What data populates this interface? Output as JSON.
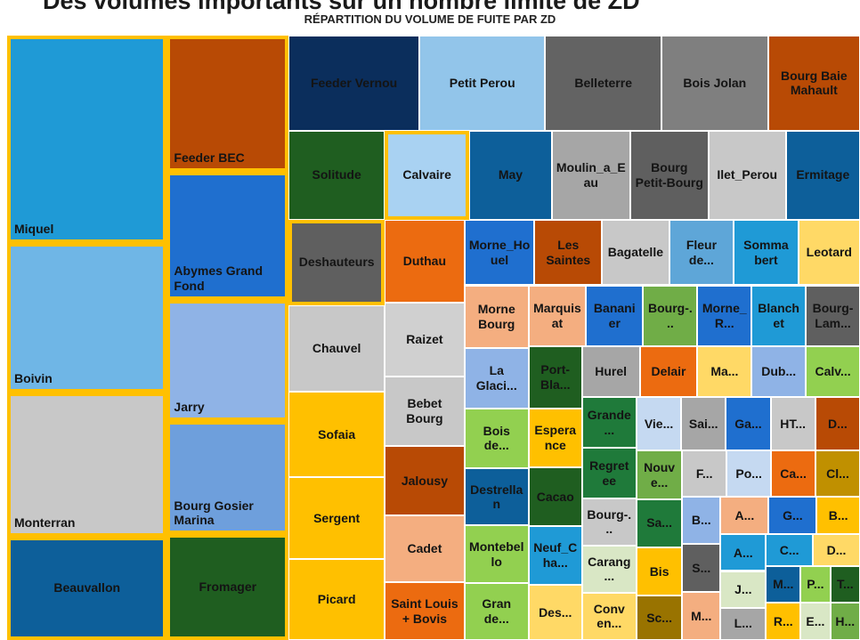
{
  "heading": "Des volumes importants sur un nombre limité de ZD",
  "chart_data": {
    "type": "treemap",
    "title": "RÉPARTITION DU VOLUME DE FUITE PAR ZD",
    "categories": [
      "Miquel",
      "Boivin",
      "Monterran",
      "Beauvallon",
      "Feeder BEC",
      "Abymes Grand Fond",
      "Jarry",
      "Bourg Gosier Marina",
      "Fromager",
      "Feeder Vernou",
      "Petit Perou",
      "Belleterre",
      "Bois Jolan",
      "Bourg Baie Mahault",
      "Solitude",
      "Deshauteurs",
      "Chauvel",
      "Sofaia",
      "Sergent",
      "Picard",
      "Calvaire",
      "May",
      "Moulin_a_Eau",
      "Bourg Petit-Bourg",
      "Ilet_Perou",
      "Ermitage",
      "Duthau",
      "Raizet",
      "Bebet Bourg",
      "Jalousy",
      "Cadet",
      "Saint Louis + Bovis",
      "Morne_Houel",
      "Les Saintes",
      "Bagatelle",
      "Fleur de...",
      "Somma bert",
      "Leotard",
      "Morne Bourg",
      "La Glaci...",
      "Bois de...",
      "Destrellan",
      "Montebello",
      "Gran de...",
      "Marquisat",
      "Bananier",
      "Bourg-...",
      "Morne_R...",
      "Blanchet",
      "Bourg-Lam...",
      "Port-Bla...",
      "Esperance",
      "Cacao",
      "Neuf_Cha...",
      "Des...",
      "Hurel",
      "Delair",
      "Ma...",
      "Dub...",
      "Calv...",
      "Grande...",
      "Regretee",
      "Bourg-...",
      "Carang...",
      "Conv en...",
      "Vie...",
      "Sai...",
      "Ga...",
      "HT...",
      "D...",
      "Nouve...",
      "Sa...",
      "Bis",
      "Sc...",
      "F...",
      "Po...",
      "Ca...",
      "Cl...",
      "B...",
      "S...",
      "M...",
      "A...",
      "G...",
      "B...",
      "A...",
      "J...",
      "L...",
      "C...",
      "D...",
      "M...",
      "R...",
      "P...",
      "T...",
      "E...",
      "H..."
    ],
    "values": [
      36,
      26,
      25,
      18,
      18,
      17,
      16,
      15,
      14,
      13.5,
      13,
      12,
      11,
      9.5,
      9.3,
      9,
      9,
      9,
      8.5,
      8.5,
      8.2,
      8,
      7.6,
      7.6,
      7.5,
      7.2,
      7.2,
      6.4,
      6,
      6,
      5.8,
      5,
      5,
      4.8,
      4.8,
      4.6,
      4.6,
      4.4,
      4.4,
      4.2,
      4.2,
      4,
      4,
      4,
      3.8,
      3.8,
      3.6,
      3.6,
      3.6,
      3.6,
      3.6,
      3.4,
      3.4,
      3.4,
      3.2,
      3.2,
      3.2,
      3,
      3,
      3,
      3,
      3,
      2.8,
      2.8,
      2.8,
      2.6,
      2.6,
      2.6,
      2.6,
      2.6,
      2.4,
      2.4,
      2.4,
      2.2,
      2.2,
      2.2,
      2.2,
      2.2,
      2,
      2,
      2,
      2,
      2,
      1.8,
      1.8,
      1.8,
      1.6,
      1.6,
      1.6,
      1.4,
      1.4,
      1.2,
      1.2,
      1.2,
      1.2
    ],
    "colors": [
      "#1f9ad6",
      "#6fb6e6",
      "#c8c8c8",
      "#0d5f9a",
      "#b84a05",
      "#1f6fcf",
      "#8fb3e6",
      "#6e9fdc",
      "#1f5e20",
      "#0b2e5c",
      "#92c5ea",
      "#636363",
      "#7f7f7f",
      "#b84a05",
      "#1f5e20",
      "#5f5f5f",
      "#c8c8c8",
      "#ffc000",
      "#ffc000",
      "#ffc000",
      "#a9d2f2",
      "#0d5f9a",
      "#a6a6a6",
      "#5f5f5f",
      "#c8c8c8",
      "#0d5f9a",
      "#ec6b10",
      "#d0d0d0",
      "#c8c8c8",
      "#b84a05",
      "#f4ae80",
      "#ec6b10",
      "#1f6fcf",
      "#b84a05",
      "#c8c8c8",
      "#5ea6d8",
      "#1f9ad6",
      "#ffd966",
      "#f4ae80",
      "#8fb3e6",
      "#92d050",
      "#0d5f9a",
      "#92d050",
      "#92d050",
      "#f4ae80",
      "#1f6fcf",
      "#70ad47",
      "#1f6fcf",
      "#1f9ad6",
      "#5f5f5f",
      "#1f5e20",
      "#ffc000",
      "#1f5e20",
      "#1f9ad6",
      "#ffd966",
      "#a6a6a6",
      "#ec6b10",
      "#ffd966",
      "#8fb3e6",
      "#92d050",
      "#1f7a3a",
      "#1f7a3a",
      "#c8c8c8",
      "#d9e7c5",
      "#ffd966",
      "#c5d9f1",
      "#a6a6a6",
      "#1f6fcf",
      "#c8c8c8",
      "#b84a05",
      "#70ad47",
      "#1f7a3a",
      "#ffc000",
      "#997300",
      "#c8c8c8",
      "#c5d9f1",
      "#ec6b10",
      "#c09000",
      "#8fb3e6",
      "#5f5f5f",
      "#f4ae80",
      "#f4ae80",
      "#1f6fcf",
      "#ffc000",
      "#1f9ad6",
      "#d9e7c5",
      "#a6a6a6",
      "#1f9ad6",
      "#ffd966",
      "#0d5f9a",
      "#ffc000",
      "#92d050",
      "#1f5e20",
      "#d9e7c5",
      "#70ad47"
    ],
    "highlighted": [
      true,
      true,
      true,
      true,
      true,
      true,
      true,
      true,
      true,
      false,
      false,
      false,
      false,
      false,
      false,
      true,
      false,
      false,
      false,
      false,
      true,
      false,
      false,
      false,
      false,
      false,
      false,
      false,
      false,
      false,
      false,
      false,
      false,
      false,
      false,
      false,
      false,
      false,
      false,
      false,
      false,
      false,
      false,
      false,
      false,
      false,
      false,
      false,
      false,
      false,
      false,
      false,
      false,
      false,
      false,
      false,
      false,
      false,
      false,
      false,
      false,
      false,
      false,
      false,
      false,
      false,
      false,
      false,
      false,
      false,
      false,
      false,
      false,
      false,
      false,
      false,
      false,
      false,
      false,
      false,
      false,
      false,
      false,
      false,
      false,
      false,
      false,
      false,
      false,
      false,
      false,
      false,
      false,
      false,
      false
    ]
  }
}
